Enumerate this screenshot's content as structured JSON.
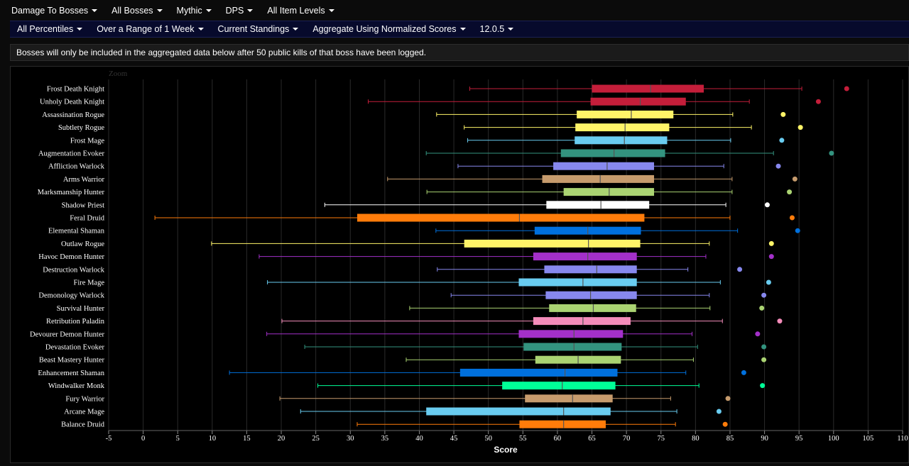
{
  "filters_row1": [
    {
      "label": "Damage To Bosses"
    },
    {
      "label": "All Bosses"
    },
    {
      "label": "Mythic"
    },
    {
      "label": "DPS"
    },
    {
      "label": "All Item Levels"
    }
  ],
  "filters_row2": [
    {
      "label": "All Percentiles"
    },
    {
      "label": "Over a Range of 1 Week"
    },
    {
      "label": "Current Standings"
    },
    {
      "label": "Aggregate Using Normalized Scores"
    },
    {
      "label": "12.0.5"
    }
  ],
  "notice": "Bosses will only be included in the aggregated data below after 50 public kills of that boss have been logged.",
  "zoom_label": "Zoom",
  "chart_data": {
    "type": "boxplot",
    "xlabel": "Score",
    "xlim": [
      -5,
      110
    ],
    "xticks": [
      -5,
      0,
      5,
      10,
      15,
      20,
      25,
      30,
      35,
      40,
      45,
      50,
      55,
      60,
      65,
      70,
      75,
      80,
      85,
      90,
      95,
      100,
      105,
      110
    ],
    "grid": true,
    "series": [
      {
        "name": "Frost Death Knight",
        "color": "#c41e3a",
        "min": 47.3,
        "q1": 65.0,
        "median": 73.5,
        "q3": 81.2,
        "max": 95.4,
        "outlier": 101.9
      },
      {
        "name": "Unholy Death Knight",
        "color": "#c41e3a",
        "min": 32.6,
        "q1": 64.8,
        "median": 72.0,
        "q3": 78.6,
        "max": 87.8,
        "outlier": 97.8
      },
      {
        "name": "Assassination Rogue",
        "color": "#fff468",
        "min": 42.5,
        "q1": 62.8,
        "median": 70.7,
        "q3": 76.8,
        "max": 85.4,
        "outlier": 92.7
      },
      {
        "name": "Subtlety Rogue",
        "color": "#fff468",
        "min": 46.5,
        "q1": 62.6,
        "median": 69.8,
        "q3": 76.2,
        "max": 88.1,
        "outlier": 95.2
      },
      {
        "name": "Frost Mage",
        "color": "#69ccf0",
        "min": 47.0,
        "q1": 62.5,
        "median": 69.7,
        "q3": 75.9,
        "max": 85.1,
        "outlier": 92.5
      },
      {
        "name": "Augmentation Evoker",
        "color": "#33937f",
        "min": 41.0,
        "q1": 60.5,
        "median": 68.2,
        "q3": 75.6,
        "max": 91.3,
        "outlier": 99.7
      },
      {
        "name": "Affliction Warlock",
        "color": "#8788ee",
        "min": 45.6,
        "q1": 59.4,
        "median": 67.2,
        "q3": 74.0,
        "max": 84.1,
        "outlier": 92.0
      },
      {
        "name": "Arms Warrior",
        "color": "#c69b6d",
        "min": 35.4,
        "q1": 57.8,
        "median": 66.2,
        "q3": 74.0,
        "max": 85.3,
        "outlier": 94.4
      },
      {
        "name": "Marksmanship Hunter",
        "color": "#aad372",
        "min": 41.1,
        "q1": 60.9,
        "median": 67.5,
        "q3": 74.0,
        "max": 85.3,
        "outlier": 93.6
      },
      {
        "name": "Shadow Priest",
        "color": "#ffffff",
        "min": 26.3,
        "q1": 58.4,
        "median": 66.3,
        "q3": 73.3,
        "max": 84.4,
        "outlier": 90.4
      },
      {
        "name": "Feral Druid",
        "color": "#ff7c0a",
        "min": 1.7,
        "q1": 31.0,
        "median": 54.5,
        "q3": 72.6,
        "max": 85.0,
        "outlier": 94.0
      },
      {
        "name": "Elemental Shaman",
        "color": "#0070dd",
        "min": 42.4,
        "q1": 56.7,
        "median": 64.4,
        "q3": 72.1,
        "max": 86.1,
        "outlier": 94.8
      },
      {
        "name": "Outlaw Rogue",
        "color": "#fff468",
        "min": 9.9,
        "q1": 46.5,
        "median": 64.5,
        "q3": 72.0,
        "max": 82.0,
        "outlier": 91.0
      },
      {
        "name": "Havoc Demon Hunter",
        "color": "#a330c9",
        "min": 16.8,
        "q1": 56.5,
        "median": 64.4,
        "q3": 71.5,
        "max": 81.5,
        "outlier": 91.0
      },
      {
        "name": "Destruction Warlock",
        "color": "#8788ee",
        "min": 42.6,
        "q1": 58.1,
        "median": 65.7,
        "q3": 71.5,
        "max": 78.9,
        "outlier": 86.4
      },
      {
        "name": "Fire Mage",
        "color": "#69ccf0",
        "min": 18.0,
        "q1": 54.4,
        "median": 63.7,
        "q3": 71.5,
        "max": 83.6,
        "outlier": 90.6
      },
      {
        "name": "Demonology Warlock",
        "color": "#8788ee",
        "min": 44.6,
        "q1": 58.3,
        "median": 64.8,
        "q3": 71.5,
        "max": 82.0,
        "outlier": 89.9
      },
      {
        "name": "Survival Hunter",
        "color": "#aad372",
        "min": 38.6,
        "q1": 58.8,
        "median": 65.2,
        "q3": 71.4,
        "max": 82.1,
        "outlier": 89.6
      },
      {
        "name": "Retribution Paladin",
        "color": "#f48cba",
        "min": 20.1,
        "q1": 56.5,
        "median": 63.7,
        "q3": 70.6,
        "max": 83.9,
        "outlier": 92.2
      },
      {
        "name": "Devourer Demon Hunter",
        "color": "#a330c9",
        "min": 17.9,
        "q1": 54.4,
        "median": 62.4,
        "q3": 69.5,
        "max": 79.5,
        "outlier": 89.0
      },
      {
        "name": "Devastation Evoker",
        "color": "#33937f",
        "min": 23.4,
        "q1": 55.1,
        "median": 62.4,
        "q3": 69.3,
        "max": 80.3,
        "outlier": 89.9
      },
      {
        "name": "Beast Mastery Hunter",
        "color": "#aad372",
        "min": 38.1,
        "q1": 56.8,
        "median": 63.0,
        "q3": 69.2,
        "max": 79.7,
        "outlier": 89.9
      },
      {
        "name": "Enhancement Shaman",
        "color": "#0070dd",
        "min": 12.5,
        "q1": 45.9,
        "median": 61.1,
        "q3": 68.7,
        "max": 78.6,
        "outlier": 87.0
      },
      {
        "name": "Windwalker Monk",
        "color": "#00ff98",
        "min": 25.3,
        "q1": 52.0,
        "median": 60.7,
        "q3": 68.4,
        "max": 80.5,
        "outlier": 89.7
      },
      {
        "name": "Fury Warrior",
        "color": "#c69b6d",
        "min": 19.8,
        "q1": 55.3,
        "median": 62.2,
        "q3": 68.0,
        "max": 76.4,
        "outlier": 84.7
      },
      {
        "name": "Arcane Mage",
        "color": "#69ccf0",
        "min": 22.8,
        "q1": 41.0,
        "median": 60.9,
        "q3": 67.7,
        "max": 77.3,
        "outlier": 83.4
      },
      {
        "name": "Balance Druid",
        "color": "#ff7c0a",
        "min": 31.0,
        "q1": 54.5,
        "median": 60.9,
        "q3": 67.0,
        "max": 77.1,
        "outlier": 84.3
      }
    ]
  }
}
